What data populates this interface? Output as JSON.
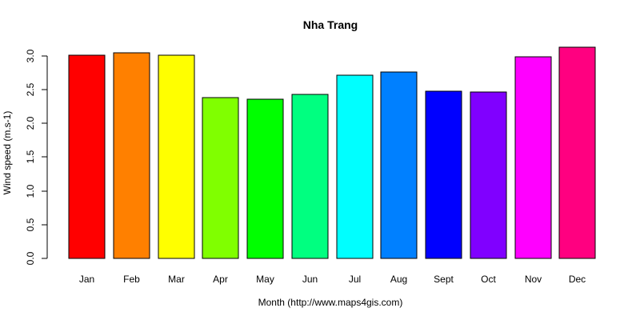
{
  "chart_data": {
    "type": "bar",
    "title": "Nha Trang",
    "xlabel": "Month (http://www.maps4gis.com)",
    "ylabel": "Wind speed (m.s-1)",
    "categories": [
      "Jan",
      "Feb",
      "Mar",
      "Apr",
      "May",
      "Jun",
      "Jul",
      "Aug",
      "Sept",
      "Oct",
      "Nov",
      "Dec"
    ],
    "values": [
      3.01,
      3.04,
      3.01,
      2.38,
      2.36,
      2.43,
      2.71,
      2.76,
      2.47,
      2.46,
      2.98,
      3.12
    ],
    "colors": [
      "#ff0000",
      "#ff8000",
      "#ffff00",
      "#80ff00",
      "#00ff00",
      "#00ff80",
      "#00ffff",
      "#0080ff",
      "#0000ff",
      "#8000ff",
      "#ff00ff",
      "#ff0080"
    ],
    "y_ticks": [
      "0.0",
      "0.5",
      "1.0",
      "1.5",
      "2.0",
      "2.5",
      "3.0"
    ],
    "ylim": [
      0,
      3.12
    ],
    "grid": false,
    "legend": "none"
  }
}
